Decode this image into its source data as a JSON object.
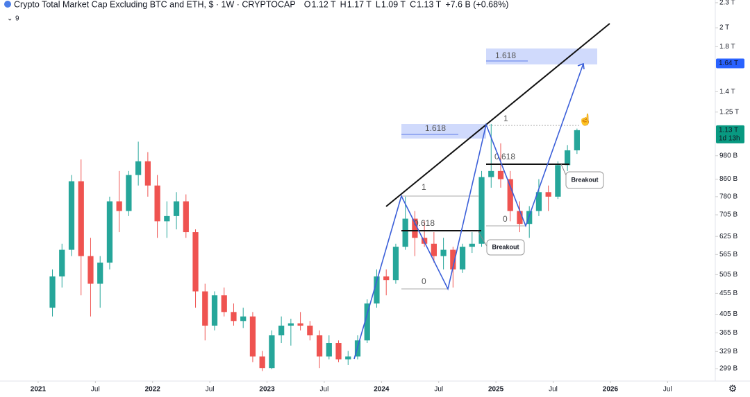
{
  "chart_data": {
    "type": "candlestick",
    "title": "Crypto Total Market Cap Excluding BTC and ETH, $ · 1W · CRYPTOCAP",
    "header_ohlc": [
      {
        "key": "O",
        "text": "1.12 T"
      },
      {
        "key": "H",
        "text": "1.17 T"
      },
      {
        "key": "L",
        "text": "1.09 T"
      },
      {
        "key": "C",
        "text": "1.13 T"
      }
    ],
    "change": "+7.6 B (+0.68%)",
    "indicator_count": "9",
    "log_scale": true,
    "up_color": "#26a69a",
    "down_color": "#ef5350",
    "x": [
      "2021-02",
      "2021-03",
      "2021-04",
      "2021-05",
      "2021-06",
      "2021-07",
      "2021-08",
      "2021-09",
      "2021-10",
      "2021-11",
      "2021-12",
      "2022-01",
      "2022-02",
      "2022-03",
      "2022-04",
      "2022-05",
      "2022-06",
      "2022-07",
      "2022-08",
      "2022-09",
      "2022-10",
      "2022-11",
      "2022-12",
      "2023-01",
      "2023-02",
      "2023-03",
      "2023-04",
      "2023-05",
      "2023-06",
      "2023-07",
      "2023-08",
      "2023-09",
      "2023-10",
      "2023-11",
      "2023-12",
      "2024-01",
      "2024-02",
      "2024-03",
      "2024-04",
      "2024-05",
      "2024-06",
      "2024-07",
      "2024-08",
      "2024-09",
      "2024-10",
      "2024-11",
      "2024-12",
      "2025-01",
      "2025-02",
      "2025-03",
      "2025-04",
      "2025-05",
      "2025-06",
      "2025-07",
      "2025-08",
      "2025-09"
    ],
    "open": [
      420,
      500,
      580,
      850,
      560,
      480,
      540,
      760,
      720,
      880,
      950,
      830,
      680,
      700,
      760,
      640,
      460,
      380,
      450,
      410,
      390,
      400,
      320,
      300,
      360,
      380,
      385,
      380,
      360,
      320,
      345,
      315,
      320,
      350,
      430,
      500,
      490,
      590,
      690,
      620,
      600,
      560,
      580,
      520,
      590,
      600,
      870,
      900,
      860,
      720,
      670,
      720,
      800,
      780,
      930,
      1010
    ],
    "high": [
      520,
      600,
      880,
      960,
      620,
      560,
      780,
      900,
      900,
      1060,
      1000,
      880,
      760,
      800,
      790,
      650,
      480,
      460,
      470,
      430,
      420,
      410,
      330,
      370,
      400,
      395,
      410,
      390,
      370,
      360,
      350,
      330,
      360,
      440,
      520,
      520,
      600,
      780,
      720,
      680,
      640,
      620,
      590,
      600,
      640,
      900,
      1170,
      1050,
      900,
      760,
      740,
      860,
      830,
      950,
      1040,
      1140
    ],
    "low": [
      400,
      470,
      560,
      450,
      400,
      420,
      520,
      640,
      700,
      830,
      780,
      620,
      620,
      650,
      620,
      420,
      350,
      370,
      400,
      380,
      375,
      310,
      295,
      298,
      345,
      340,
      370,
      350,
      300,
      315,
      310,
      305,
      315,
      345,
      420,
      450,
      480,
      580,
      560,
      590,
      540,
      520,
      470,
      510,
      570,
      590,
      820,
      820,
      680,
      640,
      620,
      700,
      720,
      770,
      900,
      990
    ],
    "close": [
      500,
      580,
      850,
      560,
      480,
      540,
      760,
      720,
      880,
      950,
      830,
      680,
      700,
      760,
      640,
      460,
      380,
      450,
      410,
      390,
      400,
      320,
      300,
      360,
      380,
      385,
      380,
      360,
      320,
      345,
      315,
      320,
      350,
      430,
      500,
      490,
      590,
      690,
      620,
      600,
      560,
      580,
      520,
      590,
      600,
      870,
      900,
      860,
      720,
      670,
      720,
      800,
      780,
      930,
      1010,
      1130
    ],
    "xlim": [
      "2020-09",
      "2026-12"
    ],
    "xticks": [
      {
        "value": "2021-01",
        "label": "2021"
      },
      {
        "value": "2021-07",
        "label": "Jul"
      },
      {
        "value": "2022-01",
        "label": "2022"
      },
      {
        "value": "2022-07",
        "label": "Jul"
      },
      {
        "value": "2023-01",
        "label": "2023"
      },
      {
        "value": "2023-07",
        "label": "Jul"
      },
      {
        "value": "2024-01",
        "label": "2024"
      },
      {
        "value": "2024-07",
        "label": "Jul"
      },
      {
        "value": "2025-01",
        "label": "2025"
      },
      {
        "value": "2025-07",
        "label": "Jul"
      },
      {
        "value": "2026-01",
        "label": "2026"
      },
      {
        "value": "2026-07",
        "label": "Jul"
      }
    ],
    "ylim": [
      279,
      2335
    ],
    "yticks": [
      {
        "value": 2300,
        "label": "2.3 T"
      },
      {
        "value": 2000,
        "label": "2 T"
      },
      {
        "value": 1800,
        "label": "1.8 T"
      },
      {
        "value": 1400,
        "label": "1.4 T"
      },
      {
        "value": 1250,
        "label": "1.25 T"
      },
      {
        "value": 980,
        "label": "980 B"
      },
      {
        "value": 860,
        "label": "860 B"
      },
      {
        "value": 780,
        "label": "780 B"
      },
      {
        "value": 705,
        "label": "705 B"
      },
      {
        "value": 625,
        "label": "625 B"
      },
      {
        "value": 565,
        "label": "565 B"
      },
      {
        "value": 505,
        "label": "505 B"
      },
      {
        "value": 455,
        "label": "455 B"
      },
      {
        "value": 405,
        "label": "405 B"
      },
      {
        "value": 365,
        "label": "365 B"
      },
      {
        "value": 329,
        "label": "329 B"
      },
      {
        "value": 299,
        "label": "299 B"
      }
    ],
    "price_tags": [
      {
        "value": 1640,
        "label": "1.64 T",
        "color": "#2962ff"
      },
      {
        "value": 1130,
        "label": "1.13 T",
        "sub": "1d 13h",
        "color": "#089981"
      }
    ],
    "annotations": {
      "fib_a": {
        "ext": "1.618",
        "top": "1",
        "mid": "0.618",
        "bottom": "0"
      },
      "fib_b": {
        "ext": "1.618",
        "top": "1",
        "mid": "0.618",
        "bottom": "0"
      },
      "breakout_a": "Breakout",
      "breakout_b": "Breakout"
    }
  }
}
